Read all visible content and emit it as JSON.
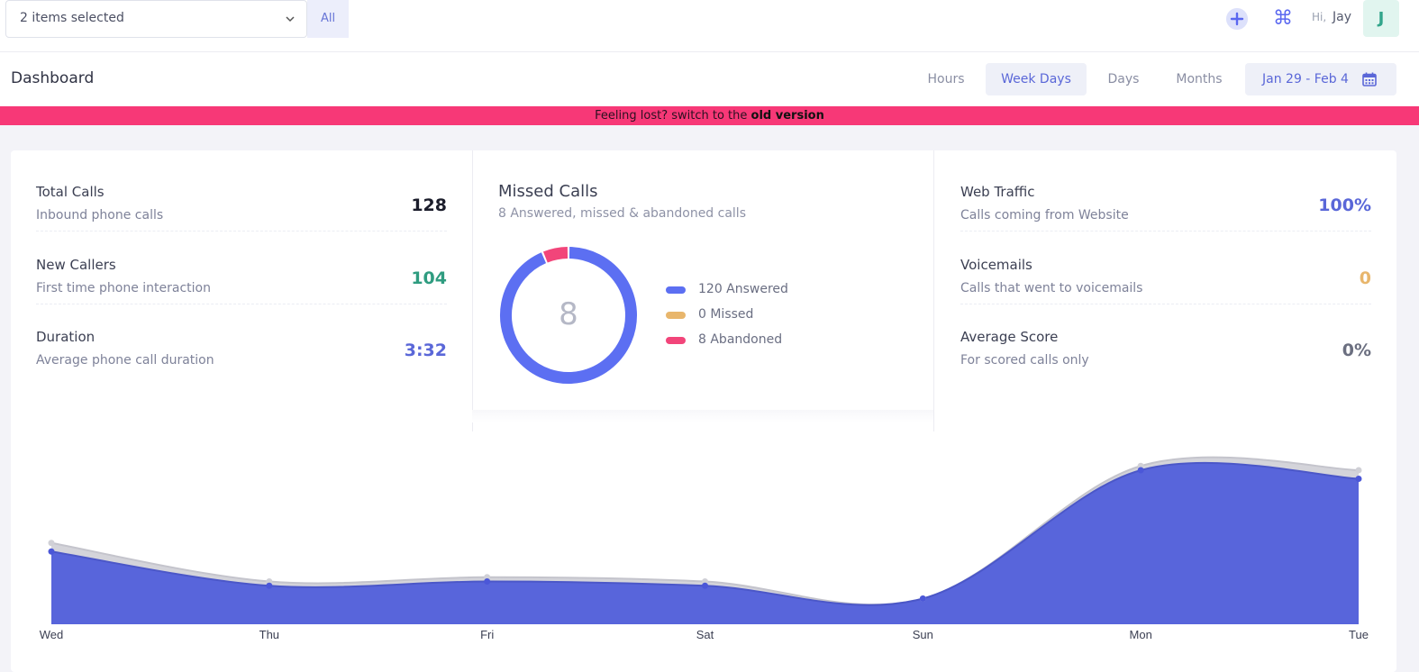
{
  "topbar": {
    "selector_value": "2 items selected",
    "all_label": "All",
    "greeting": "Hi,",
    "user_name": "Jay",
    "avatar_initial": "J",
    "icons": [
      "plus-icon",
      "command-icon",
      "chevron-down-icon"
    ]
  },
  "subheader": {
    "title": "Dashboard",
    "tabs": [
      {
        "label": "Hours",
        "active": false
      },
      {
        "label": "Week Days",
        "active": true
      },
      {
        "label": "Days",
        "active": false
      },
      {
        "label": "Months",
        "active": false
      }
    ],
    "date_range": "Jan 29 - Feb 4"
  },
  "banner": {
    "text": "Feeling lost? switch to the ",
    "link": "old version",
    "color": "#f73877"
  },
  "stats_left": [
    {
      "name": "Total Calls",
      "desc": "Inbound phone calls",
      "value": "128",
      "color": "#1b1d2b"
    },
    {
      "name": "New Callers",
      "desc": "First time phone interaction",
      "value": "104",
      "color": "#2f9c80"
    },
    {
      "name": "Duration",
      "desc": "Average phone call duration",
      "value": "3:32",
      "color": "#5a67d8"
    }
  ],
  "missed_calls": {
    "title": "Missed Calls",
    "subtitle": "8 Answered, missed & abandoned calls",
    "center_value": "8",
    "legend": [
      {
        "label": "120 Answered",
        "value": 120,
        "color": "#5c6ff2"
      },
      {
        "label": "0 Missed",
        "value": 0,
        "color": "#e8b66c"
      },
      {
        "label": "8 Abandoned",
        "value": 8,
        "color": "#f2457a"
      }
    ]
  },
  "stats_right": [
    {
      "name": "Web Traffic",
      "desc": "Calls coming from Website",
      "value": "100%",
      "color": "#5a67d8"
    },
    {
      "name": "Voicemails",
      "desc": "Calls that went to voicemails",
      "value": "0",
      "color": "#e8b66c"
    },
    {
      "name": "Average Score",
      "desc": "For scored calls only",
      "value": "0%",
      "color": "#6b6f80"
    }
  ],
  "chart_data": {
    "type": "area",
    "categories": [
      "Wed",
      "Thu",
      "Fri",
      "Sat",
      "Sun",
      "Mon",
      "Tue"
    ],
    "series": [
      {
        "values": [
          17,
          9,
          10,
          9,
          6,
          36,
          34
        ],
        "color": "#5865db"
      },
      {
        "values": [
          19,
          10,
          11,
          10,
          6,
          37,
          36
        ],
        "color": "#cfcfd6"
      }
    ],
    "ylim": [
      0,
      40
    ]
  }
}
